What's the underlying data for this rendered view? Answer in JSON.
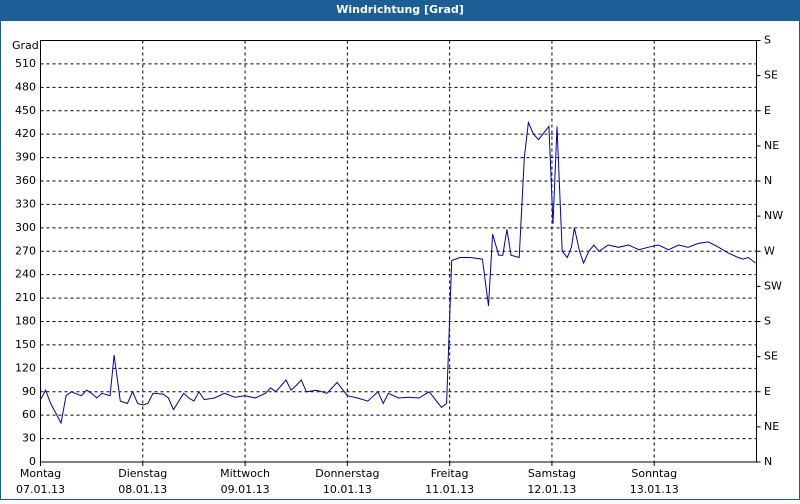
{
  "chart_data": {
    "type": "line",
    "title": "Windrichtung [Grad]",
    "ylabel": "Grad",
    "color": "#0000aa",
    "grid": true,
    "xlim": [
      0,
      7
    ],
    "ylim": [
      0,
      540
    ],
    "yticks": [
      0,
      30,
      60,
      90,
      120,
      150,
      180,
      210,
      240,
      270,
      300,
      330,
      360,
      390,
      420,
      450,
      480,
      510
    ],
    "y2lim": [
      0,
      540
    ],
    "y2ticks": [
      {
        "value": 0,
        "label": "N"
      },
      {
        "value": 45,
        "label": "NE"
      },
      {
        "value": 90,
        "label": "E"
      },
      {
        "value": 135,
        "label": "SE"
      },
      {
        "value": 180,
        "label": "S"
      },
      {
        "value": 225,
        "label": "SW"
      },
      {
        "value": 270,
        "label": "W"
      },
      {
        "value": 315,
        "label": "NW"
      },
      {
        "value": 360,
        "label": "N"
      },
      {
        "value": 405,
        "label": "NE"
      },
      {
        "value": 450,
        "label": "E"
      },
      {
        "value": 495,
        "label": "SE"
      },
      {
        "value": 540,
        "label": "S"
      }
    ],
    "xticks": [
      {
        "value": 0,
        "label": "07.01.13"
      },
      {
        "value": 1,
        "label": "08.01.13"
      },
      {
        "value": 2,
        "label": "09.01.13"
      },
      {
        "value": 3,
        "label": "10.01.13"
      },
      {
        "value": 4,
        "label": "11.01.13"
      },
      {
        "value": 5,
        "label": "12.01.13"
      },
      {
        "value": 6,
        "label": "13.01.13"
      }
    ],
    "xtick_days": [
      "Montag",
      "Dienstag",
      "Mittwoch",
      "Donnerstag",
      "Freitag",
      "Samstag",
      "Sonntag"
    ],
    "x": [
      0.0,
      0.05,
      0.1,
      0.2,
      0.25,
      0.3,
      0.4,
      0.45,
      0.5,
      0.55,
      0.6,
      0.68,
      0.72,
      0.78,
      0.85,
      0.9,
      0.95,
      1.0,
      1.05,
      1.1,
      1.2,
      1.25,
      1.3,
      1.4,
      1.45,
      1.5,
      1.55,
      1.6,
      1.7,
      1.8,
      1.9,
      2.0,
      2.1,
      2.2,
      2.25,
      2.3,
      2.4,
      2.45,
      2.5,
      2.55,
      2.6,
      2.7,
      2.8,
      2.9,
      3.0,
      3.1,
      3.2,
      3.3,
      3.35,
      3.4,
      3.5,
      3.6,
      3.7,
      3.8,
      3.92,
      3.97,
      4.02,
      4.1,
      4.2,
      4.32,
      4.38,
      4.42,
      4.48,
      4.52,
      4.56,
      4.6,
      4.68,
      4.73,
      4.77,
      4.82,
      4.87,
      4.94,
      4.97,
      5.01,
      5.05,
      5.1,
      5.15,
      5.19,
      5.22,
      5.27,
      5.31,
      5.36,
      5.41,
      5.46,
      5.55,
      5.65,
      5.75,
      5.85,
      5.94,
      6.04,
      6.14,
      6.24,
      6.33,
      6.43,
      6.53,
      6.63,
      6.72,
      6.82,
      6.87,
      6.92,
      6.99
    ],
    "values": [
      80,
      92,
      75,
      50,
      85,
      90,
      85,
      92,
      88,
      82,
      88,
      85,
      137,
      78,
      75,
      90,
      75,
      73,
      75,
      88,
      87,
      82,
      67,
      88,
      82,
      78,
      90,
      80,
      82,
      88,
      83,
      85,
      82,
      88,
      95,
      90,
      105,
      92,
      98,
      105,
      90,
      92,
      88,
      102,
      85,
      82,
      78,
      90,
      75,
      88,
      82,
      83,
      82,
      90,
      70,
      75,
      258,
      262,
      262,
      260,
      200,
      292,
      265,
      265,
      298,
      265,
      262,
      390,
      435,
      420,
      413,
      425,
      430,
      305,
      430,
      270,
      262,
      275,
      300,
      270,
      255,
      270,
      278,
      270,
      278,
      275,
      278,
      272,
      275,
      278,
      272,
      278,
      275,
      280,
      282,
      275,
      268,
      262,
      260,
      262,
      255
    ]
  }
}
